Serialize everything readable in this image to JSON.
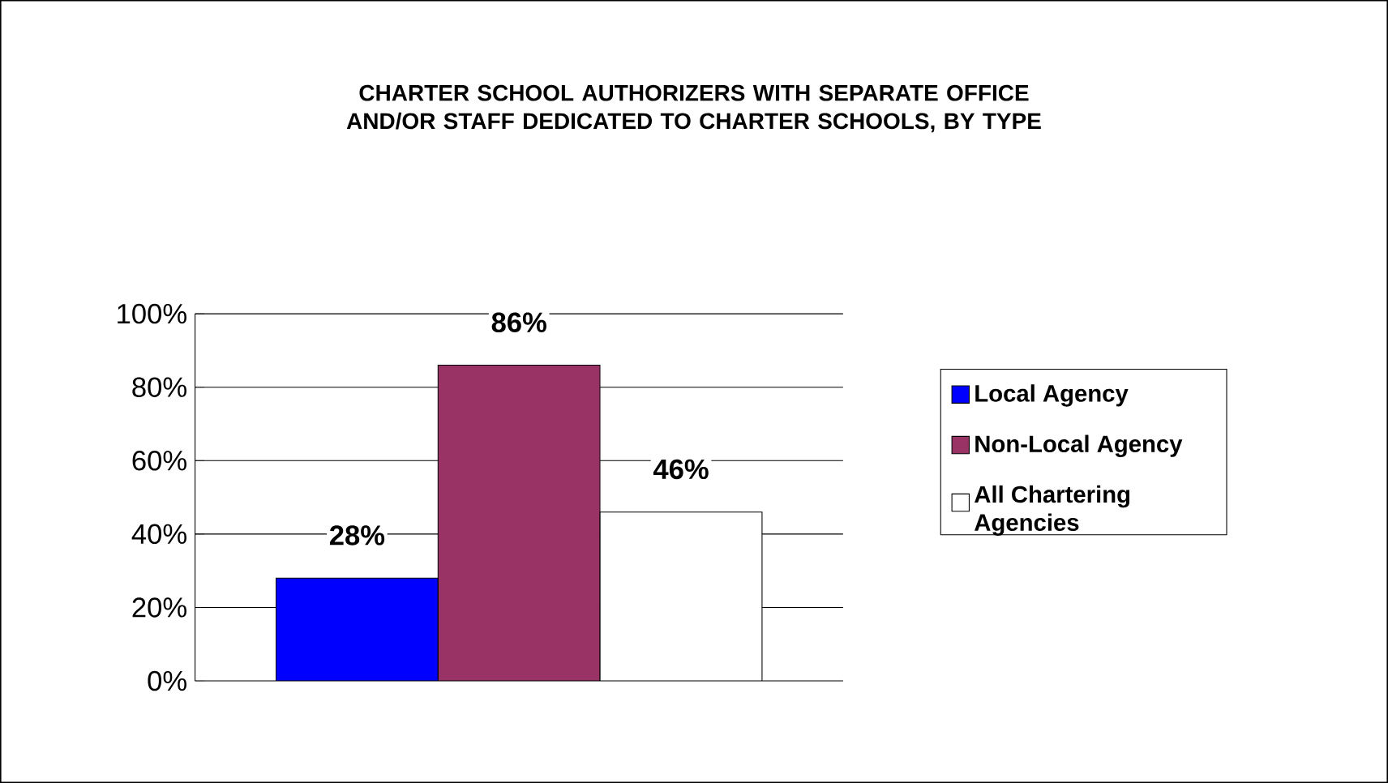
{
  "chart_data": {
    "type": "bar",
    "title": "CHARTER SCHOOL AUTHORIZERS WITH SEPARATE OFFICE AND/OR STAFF DEDICATED TO CHARTER SCHOOLS, BY TYPE",
    "categories": [
      null
    ],
    "series": [
      {
        "name": "Local Agency",
        "color": "#0000ff",
        "values": [
          28
        ],
        "value_labels": [
          "28%"
        ]
      },
      {
        "name": "Non-Local Agency",
        "color": "#993366",
        "values": [
          86
        ],
        "value_labels": [
          "86%"
        ]
      },
      {
        "name": "All Chartering Agencies",
        "color": "#ffffff",
        "values": [
          46
        ],
        "value_labels": [
          "46%"
        ]
      }
    ],
    "ylim": [
      0,
      100
    ],
    "yticks": [
      {
        "value": 0,
        "label": "0%"
      },
      {
        "value": 20,
        "label": "20%"
      },
      {
        "value": 40,
        "label": "40%"
      },
      {
        "value": 60,
        "label": "60%"
      },
      {
        "value": 80,
        "label": "80%"
      },
      {
        "value": 100,
        "label": "100%"
      }
    ],
    "grid": "y",
    "legend": "right"
  }
}
